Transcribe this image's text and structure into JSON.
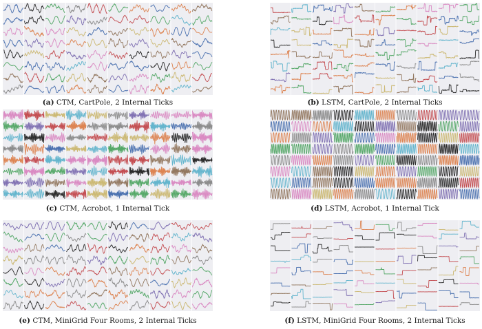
{
  "figure": {
    "panels": [
      {
        "id": "a",
        "tag": "(a)",
        "caption": "CTM, CartPole, 2 Internal Ticks",
        "model": "CTM",
        "environment": "CartPole",
        "internal_ticks": 2
      },
      {
        "id": "b",
        "tag": "(b)",
        "caption": "LSTM, CartPole, 2 Internal Ticks",
        "model": "LSTM",
        "environment": "CartPole",
        "internal_ticks": 2
      },
      {
        "id": "c",
        "tag": "(c)",
        "caption": "CTM, Acrobot, 1 Internal Tick",
        "model": "CTM",
        "environment": "Acrobot",
        "internal_ticks": 1
      },
      {
        "id": "d",
        "tag": "(d)",
        "caption": "LSTM, Acrobot, 1 Internal Tick",
        "model": "LSTM",
        "environment": "Acrobot",
        "internal_ticks": 1
      },
      {
        "id": "e",
        "tag": "(e)",
        "caption": "CTM, MiniGrid Four Rooms, 2 Internal Ticks",
        "model": "CTM",
        "environment": "MiniGrid Four Rooms",
        "internal_ticks": 2
      },
      {
        "id": "f",
        "tag": "(f)",
        "caption": "LSTM, MiniGrid Four Rooms, 2 Internal Ticks",
        "model": "LSTM",
        "environment": "MiniGrid Four Rooms",
        "internal_ticks": 2
      }
    ],
    "grid": {
      "columns": 10,
      "rows": 8
    },
    "trace_colors": [
      "#4c72b0",
      "#dd8452",
      "#55a868",
      "#c44e52",
      "#8172b3",
      "#937860",
      "#da8bc3",
      "#8c8c8c",
      "#ccb974",
      "#64b5cd",
      "#2b2b2b"
    ]
  },
  "chart_data": [
    {
      "type": "line",
      "panel": "a",
      "style": "smooth-noisy",
      "title": ""
    },
    {
      "type": "line",
      "panel": "b",
      "style": "square-plateau",
      "title": ""
    },
    {
      "type": "line",
      "panel": "c",
      "style": "high-frequency-oscillation",
      "title": ""
    },
    {
      "type": "line",
      "panel": "d",
      "style": "regular-oscillation",
      "title": ""
    },
    {
      "type": "line",
      "panel": "e",
      "style": "smooth-noisy",
      "title": ""
    },
    {
      "type": "line",
      "panel": "f",
      "style": "step-piecewise",
      "title": ""
    }
  ]
}
